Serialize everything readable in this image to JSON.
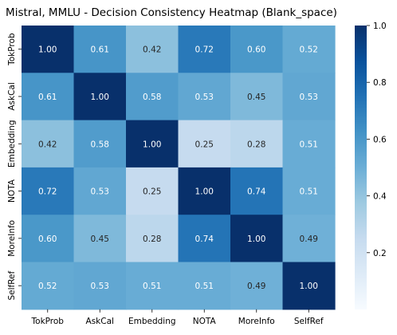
{
  "chart_data": {
    "type": "heatmap",
    "title": "Mistral, MMLU - Decision Consistency Heatmap (Blank_space)",
    "x_labels": [
      "TokProb",
      "AskCal",
      "Embedding",
      "NOTA",
      "MoreInfo",
      "SelfRef"
    ],
    "y_labels": [
      "TokProb",
      "AskCal",
      "Embedding",
      "NOTA",
      "MoreInfo",
      "SelfRef"
    ],
    "values": [
      [
        1.0,
        0.61,
        0.42,
        0.72,
        0.6,
        0.52
      ],
      [
        0.61,
        1.0,
        0.58,
        0.53,
        0.45,
        0.53
      ],
      [
        0.42,
        0.58,
        1.0,
        0.25,
        0.28,
        0.51
      ],
      [
        0.72,
        0.53,
        0.25,
        1.0,
        0.74,
        0.51
      ],
      [
        0.6,
        0.45,
        0.28,
        0.74,
        1.0,
        0.49
      ],
      [
        0.52,
        0.53,
        0.51,
        0.51,
        0.49,
        1.0
      ]
    ],
    "value_format": "2dp",
    "colormap": "Blues",
    "colorbar": {
      "min": 0.0,
      "max": 1.0,
      "ticks": [
        "1.0",
        "0.8",
        "0.6",
        "0.4",
        "0.2"
      ],
      "tick_values": [
        1.0,
        0.8,
        0.6,
        0.4,
        0.2
      ]
    },
    "grid": false,
    "legend": "colorbar-right"
  }
}
